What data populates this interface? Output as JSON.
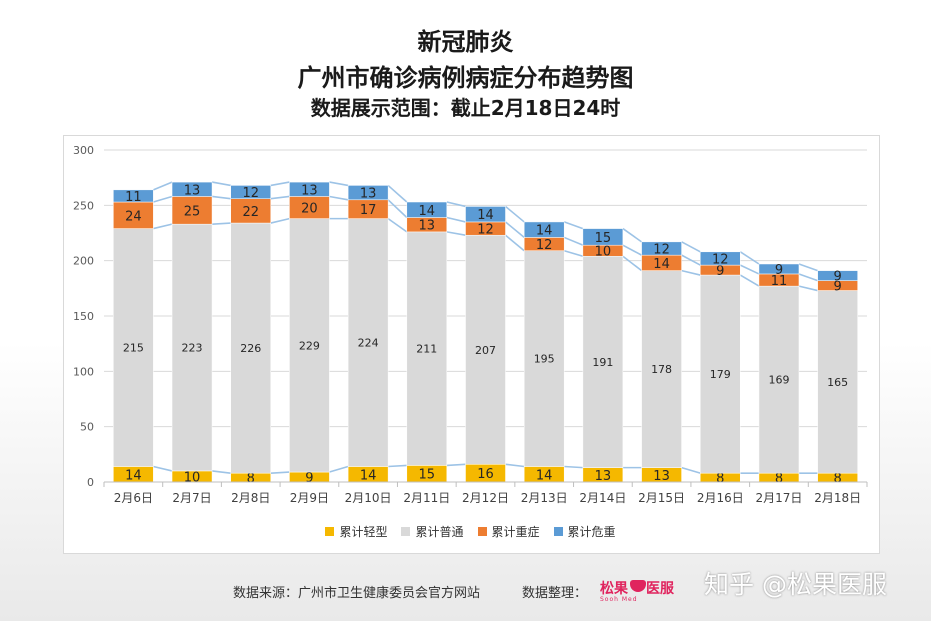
{
  "titles": {
    "line1": "新冠肺炎",
    "line2": "广州市确诊病例病症分布趋势图",
    "line3": "数据展示范围：截止2月18日24时"
  },
  "chart_data": {
    "type": "bar",
    "stacked": true,
    "categories": [
      "2月6日",
      "2月7日",
      "2月8日",
      "2月9日",
      "2月10日",
      "2月11日",
      "2月12日",
      "2月13日",
      "2月14日",
      "2月15日",
      "2月16日",
      "2月17日",
      "2月18日"
    ],
    "series": [
      {
        "name": "累计轻型",
        "color": "#f5b800",
        "values": [
          14,
          10,
          8,
          9,
          14,
          15,
          16,
          14,
          13,
          13,
          8,
          8,
          8
        ]
      },
      {
        "name": "累计普通",
        "color": "#d9d9d9",
        "values": [
          215,
          223,
          226,
          229,
          224,
          211,
          207,
          195,
          191,
          178,
          179,
          169,
          165
        ]
      },
      {
        "name": "累计重症",
        "color": "#ed7d31",
        "values": [
          24,
          25,
          22,
          20,
          17,
          13,
          12,
          12,
          10,
          14,
          9,
          11,
          9
        ]
      },
      {
        "name": "累计危重",
        "color": "#5b9bd5",
        "values": [
          11,
          13,
          12,
          13,
          13,
          14,
          14,
          14,
          15,
          12,
          12,
          9,
          9
        ]
      }
    ],
    "ylim": [
      0,
      300
    ],
    "yticks": [
      0,
      50,
      100,
      150,
      200,
      250,
      300
    ],
    "grid": true,
    "legend": "bottom",
    "series_lines": true
  },
  "footer": {
    "source": "数据来源：广州市卫生健康委员会官方网站",
    "organizer": "数据整理：",
    "logo_text": "松果医服",
    "logo_left": "松果",
    "logo_right": "医服",
    "logo_sub": "Sooh Med",
    "watermark": "知乎 @松果医服"
  }
}
